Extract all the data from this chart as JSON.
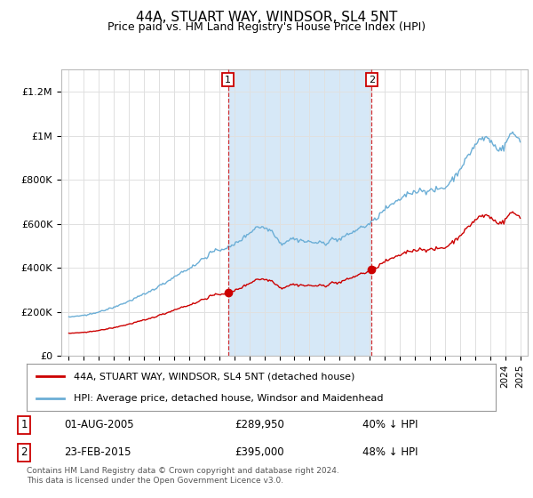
{
  "title": "44A, STUART WAY, WINDSOR, SL4 5NT",
  "subtitle": "Price paid vs. HM Land Registry's House Price Index (HPI)",
  "ylabel_ticks": [
    "£0",
    "£200K",
    "£400K",
    "£600K",
    "£800K",
    "£1M",
    "£1.2M"
  ],
  "ytick_values": [
    0,
    200000,
    400000,
    600000,
    800000,
    1000000,
    1200000
  ],
  "ylim": [
    0,
    1300000
  ],
  "xlim_start": 1994.5,
  "xlim_end": 2025.5,
  "hpi_color": "#6baed6",
  "price_color": "#cc0000",
  "shade_color": "#d6e8f7",
  "bg_color": "#ffffff",
  "grid_color": "#e0e0e0",
  "transaction1_date": 2005.58,
  "transaction1_price": 289950,
  "transaction2_date": 2015.12,
  "transaction2_price": 395000,
  "legend_label_price": "44A, STUART WAY, WINDSOR, SL4 5NT (detached house)",
  "legend_label_hpi": "HPI: Average price, detached house, Windsor and Maidenhead",
  "footer": "Contains HM Land Registry data © Crown copyright and database right 2024.\nThis data is licensed under the Open Government Licence v3.0.",
  "title_fontsize": 11,
  "subtitle_fontsize": 9
}
